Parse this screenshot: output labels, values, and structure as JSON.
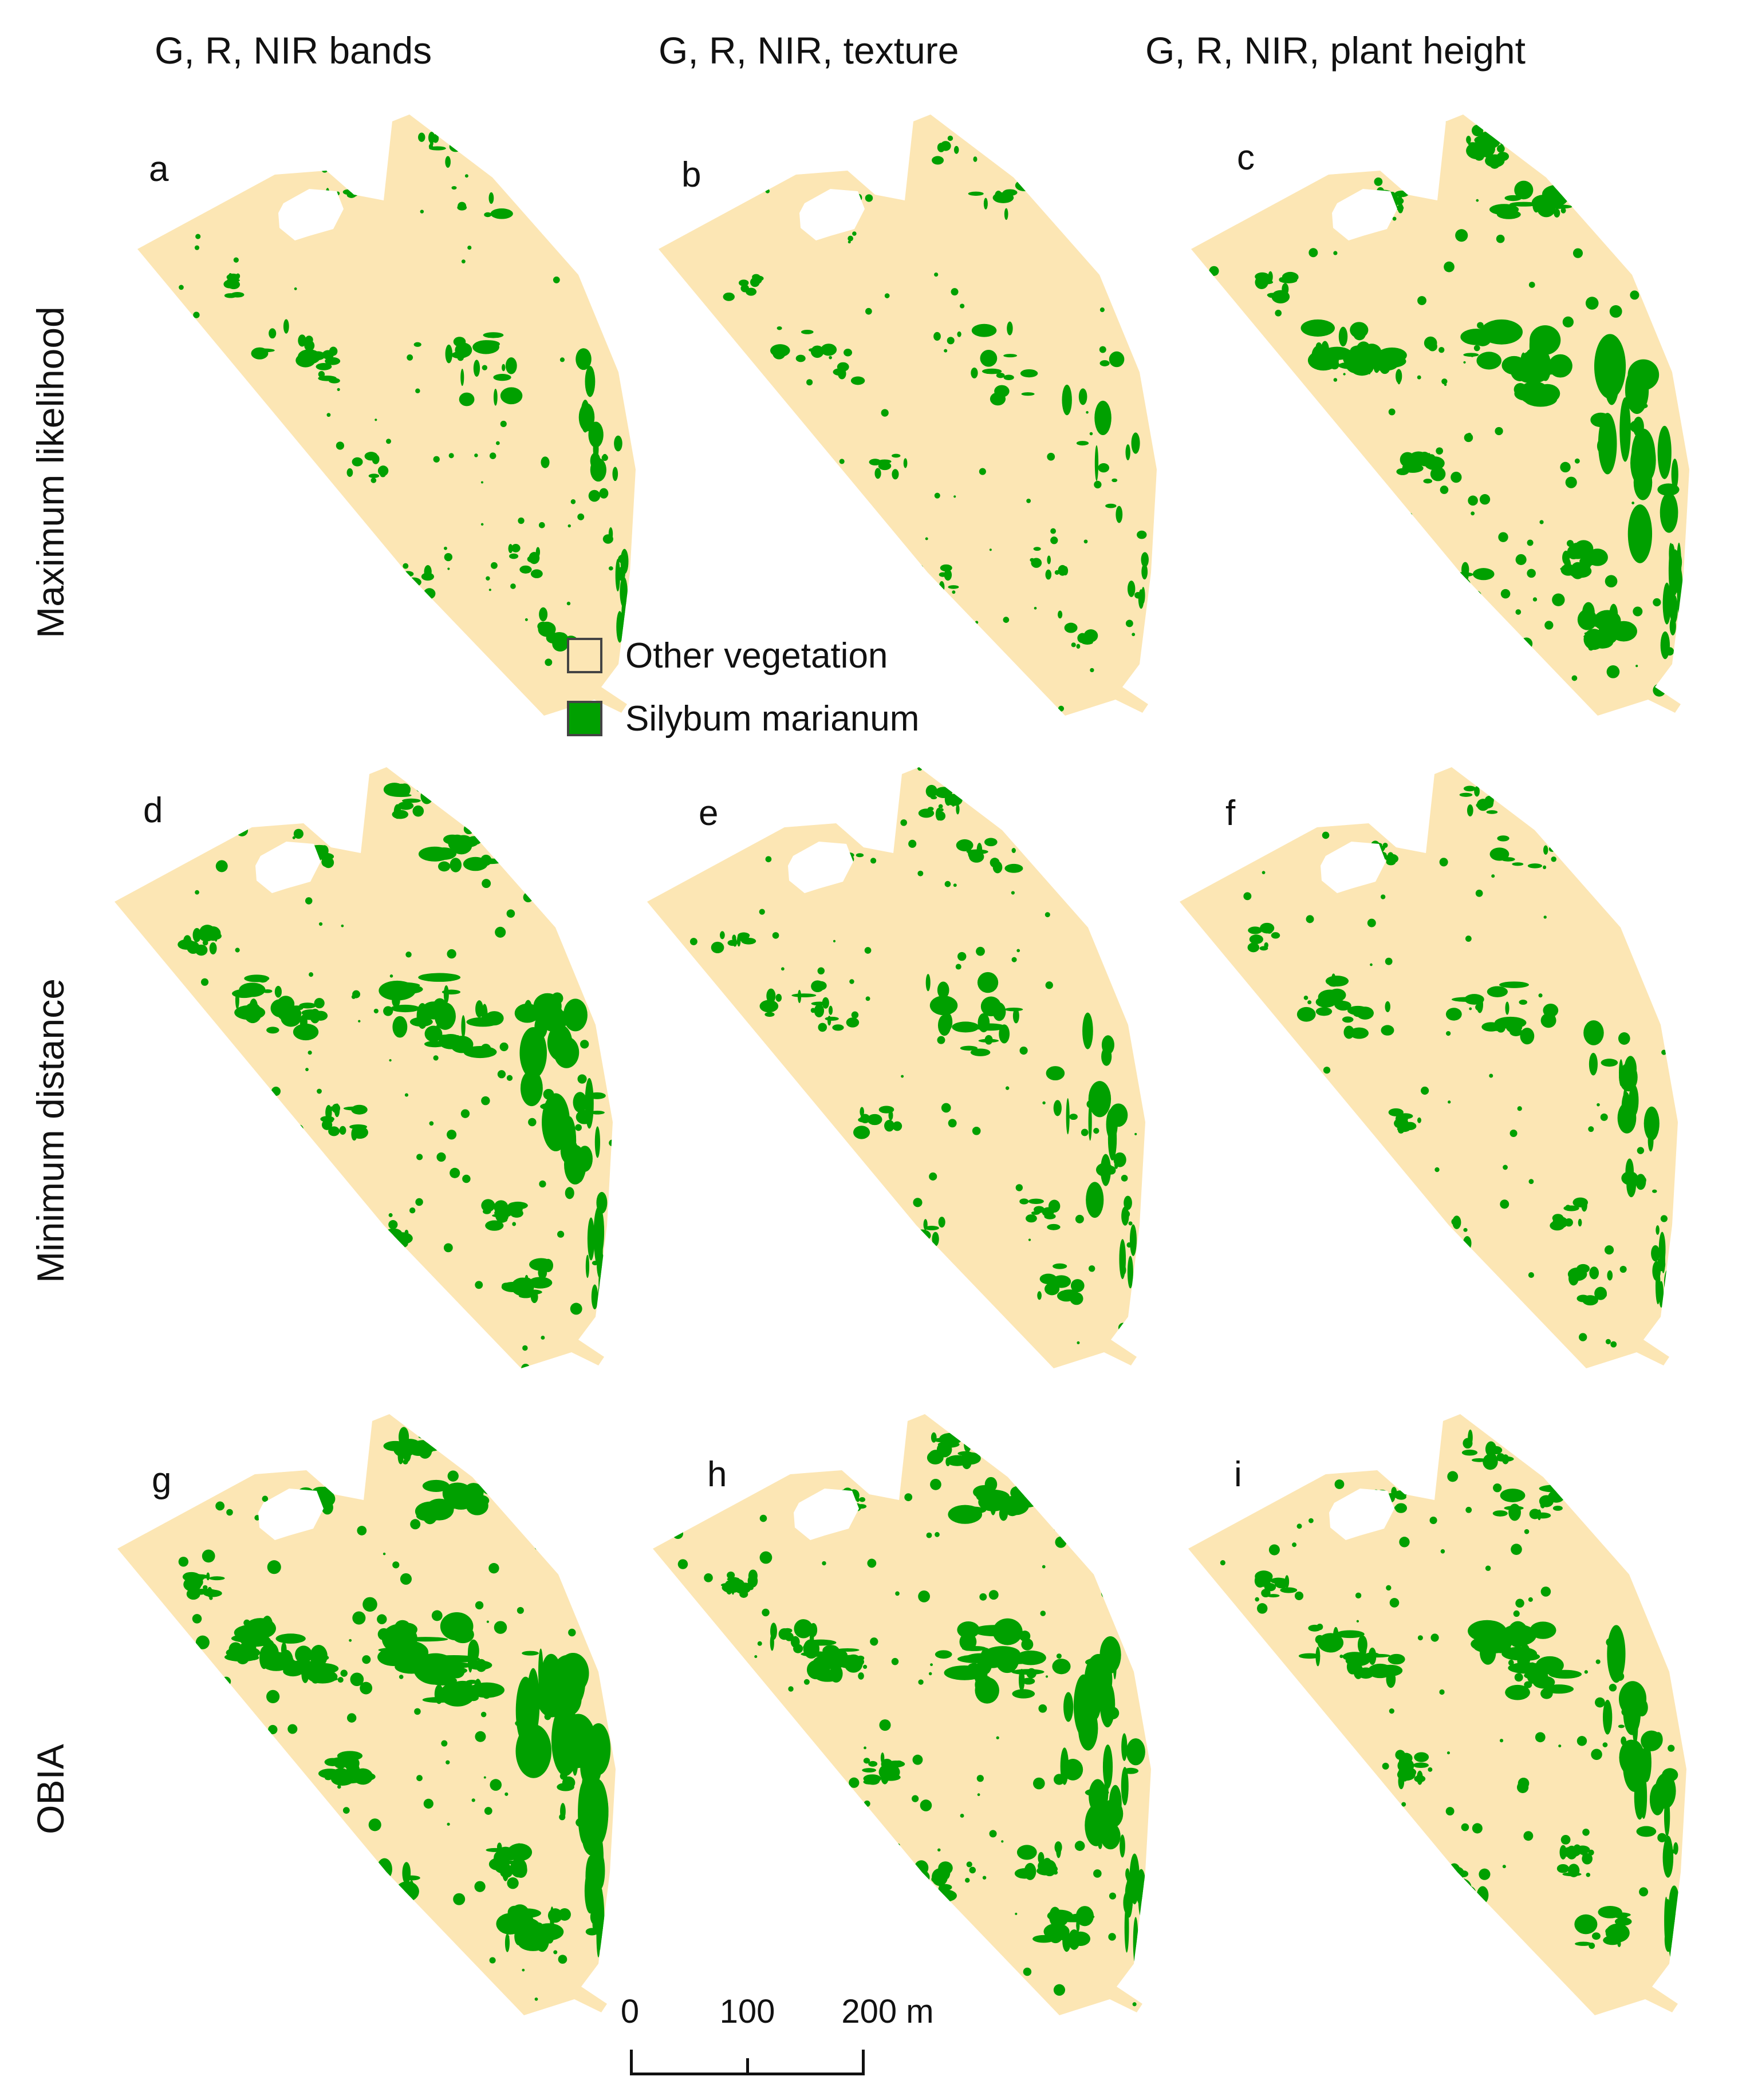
{
  "columns": [
    "G, R, NIR bands",
    "G, R, NIR, texture",
    "G, R, NIR, plant height"
  ],
  "rows": [
    "Maximum likelihood",
    "Minimum distance",
    "OBIA"
  ],
  "panels": [
    {
      "letter": "a",
      "method": "Maximum likelihood",
      "bands": "G, R, NIR bands",
      "density": 0.35
    },
    {
      "letter": "b",
      "method": "Maximum likelihood",
      "bands": "G, R, NIR, texture",
      "density": 0.25
    },
    {
      "letter": "c",
      "method": "Maximum likelihood",
      "bands": "G, R, NIR, plant height",
      "density": 0.8
    },
    {
      "letter": "d",
      "method": "Minimum distance",
      "bands": "G, R, NIR bands",
      "density": 0.7
    },
    {
      "letter": "e",
      "method": "Minimum distance",
      "bands": "G, R, NIR, texture",
      "density": 0.45
    },
    {
      "letter": "f",
      "method": "Minimum distance",
      "bands": "G, R, NIR, plant height",
      "density": 0.4
    },
    {
      "letter": "g",
      "method": "OBIA",
      "bands": "G, R, NIR bands",
      "density": 1.0
    },
    {
      "letter": "h",
      "method": "OBIA",
      "bands": "G, R, NIR, texture",
      "density": 0.75
    },
    {
      "letter": "i",
      "method": "OBIA",
      "bands": "G, R, NIR, plant height",
      "density": 0.65
    }
  ],
  "legend": {
    "items": [
      {
        "label": "Other vegetation",
        "color": "#fce6b4"
      },
      {
        "label": "Silybum marianum",
        "color": "#00a000"
      }
    ]
  },
  "scale": {
    "ticks": [
      "0",
      "100",
      "200 m"
    ]
  },
  "colors": {
    "background_class": "#fce6b4",
    "target_class": "#00a000",
    "hole": "#ffffff"
  }
}
